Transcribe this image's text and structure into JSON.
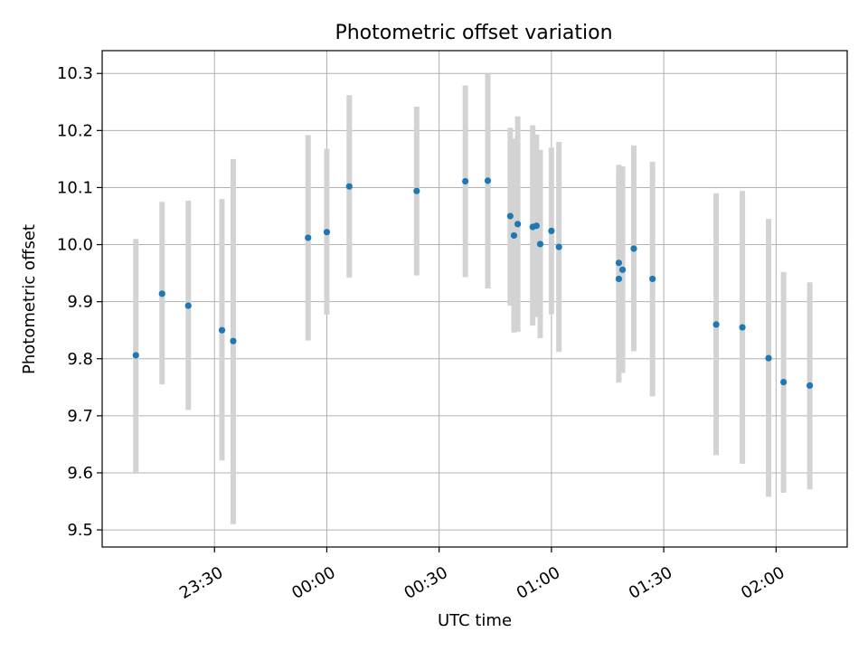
{
  "chart_data": {
    "type": "scatter",
    "title": "Photometric offset variation",
    "xlabel": "UTC time",
    "ylabel": "Photometric offset",
    "x_axis": {
      "unit": "UTC time",
      "range": [
        "23:00",
        "02:19"
      ],
      "ticks": [
        "23:30",
        "00:00",
        "00:30",
        "01:00",
        "01:30",
        "02:00"
      ]
    },
    "y_axis": {
      "range": [
        9.47,
        10.34
      ],
      "ticks": [
        9.5,
        9.6,
        9.7,
        9.8,
        9.9,
        10.0,
        10.1,
        10.2,
        10.3
      ],
      "tick_labels": [
        "9.5",
        "9.6",
        "9.7",
        "9.8",
        "9.9",
        "10.0",
        "10.1",
        "10.2",
        "10.3"
      ]
    },
    "grid": true,
    "colors": {
      "point": "#1f77b4",
      "error_bar": "#d3d3d3",
      "grid": "#b0b0b0"
    },
    "points": [
      {
        "time": "23:09",
        "y": 9.806,
        "low": 9.6,
        "high": 10.01
      },
      {
        "time": "23:16",
        "y": 9.914,
        "low": 9.755,
        "high": 10.075
      },
      {
        "time": "23:23",
        "y": 9.893,
        "low": 9.71,
        "high": 10.077
      },
      {
        "time": "23:32",
        "y": 9.85,
        "low": 9.622,
        "high": 10.08
      },
      {
        "time": "23:35",
        "y": 9.831,
        "low": 9.51,
        "high": 10.15
      },
      {
        "time": "23:55",
        "y": 10.012,
        "low": 9.832,
        "high": 10.192
      },
      {
        "time": "00:00",
        "y": 10.022,
        "low": 9.877,
        "high": 10.168
      },
      {
        "time": "00:06",
        "y": 10.102,
        "low": 9.942,
        "high": 10.262
      },
      {
        "time": "00:24",
        "y": 10.094,
        "low": 9.946,
        "high": 10.242
      },
      {
        "time": "00:37",
        "y": 10.111,
        "low": 9.943,
        "high": 10.279
      },
      {
        "time": "00:43",
        "y": 10.112,
        "low": 9.923,
        "high": 10.3
      },
      {
        "time": "00:49",
        "y": 10.05,
        "low": 9.893,
        "high": 10.205
      },
      {
        "time": "00:50",
        "y": 10.016,
        "low": 9.846,
        "high": 10.186
      },
      {
        "time": "00:51",
        "y": 10.036,
        "low": 9.847,
        "high": 10.225
      },
      {
        "time": "00:55",
        "y": 10.031,
        "low": 9.858,
        "high": 10.209
      },
      {
        "time": "00:56",
        "y": 10.033,
        "low": 9.873,
        "high": 10.193
      },
      {
        "time": "00:57",
        "y": 10.001,
        "low": 9.836,
        "high": 10.166
      },
      {
        "time": "00:60",
        "y": 10.024,
        "low": 9.878,
        "high": 10.17
      },
      {
        "time": "01:02",
        "y": 9.996,
        "low": 9.812,
        "high": 10.18
      },
      {
        "time": "01:18",
        "y": 9.94,
        "low": 9.758,
        "high": 10.123
      },
      {
        "time": "01:18",
        "y": 9.968,
        "low": 9.796,
        "high": 10.14
      },
      {
        "time": "01:19",
        "y": 9.956,
        "low": 9.775,
        "high": 10.137
      },
      {
        "time": "01:22",
        "y": 9.993,
        "low": 9.813,
        "high": 10.174
      },
      {
        "time": "01:27",
        "y": 9.94,
        "low": 9.734,
        "high": 10.145
      },
      {
        "time": "01:44",
        "y": 9.86,
        "low": 9.631,
        "high": 10.09
      },
      {
        "time": "01:51",
        "y": 9.855,
        "low": 9.616,
        "high": 10.094
      },
      {
        "time": "01:58",
        "y": 9.801,
        "low": 9.558,
        "high": 10.045
      },
      {
        "time": "02:02",
        "y": 9.759,
        "low": 9.565,
        "high": 9.952
      },
      {
        "time": "02:09",
        "y": 9.753,
        "low": 9.571,
        "high": 9.934
      }
    ]
  }
}
